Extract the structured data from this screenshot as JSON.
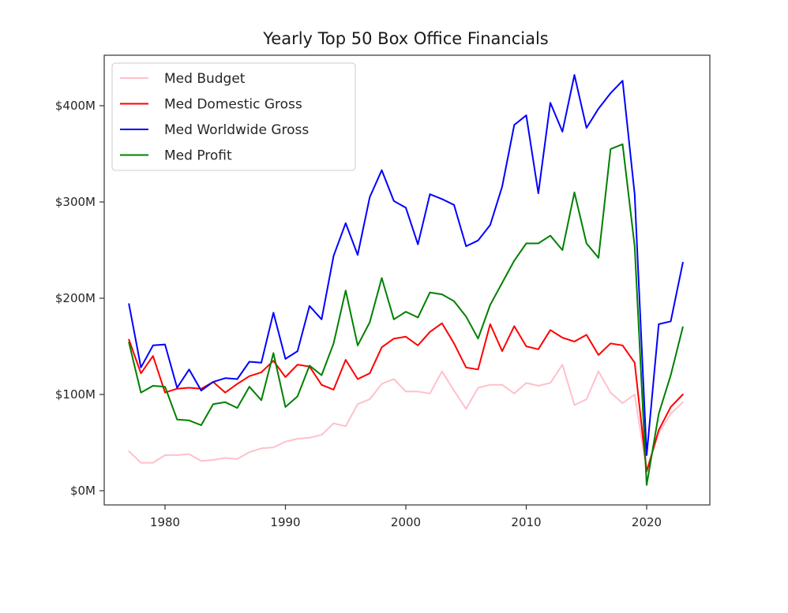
{
  "chart_data": {
    "type": "line",
    "title": "Yearly Top 50 Box Office Financials",
    "xlabel": "",
    "ylabel": "",
    "xlim": [
      1974.8,
      1925.2
    ],
    "ylim": [
      -15,
      445
    ],
    "x_ticks": [
      1980,
      1990,
      2000,
      2010,
      2020
    ],
    "y_ticks": [
      {
        "value": 0,
        "label": "$0M"
      },
      {
        "value": 100,
        "label": "$100M"
      },
      {
        "value": 200,
        "label": "$200M"
      },
      {
        "value": 300,
        "label": "$300M"
      },
      {
        "value": 400,
        "label": "$400M"
      }
    ],
    "grid": false,
    "legend_position": "top-left",
    "x": [
      1977,
      1978,
      1979,
      1980,
      1981,
      1982,
      1983,
      1984,
      1985,
      1986,
      1987,
      1988,
      1989,
      1990,
      1991,
      1992,
      1993,
      1994,
      1995,
      1996,
      1997,
      1998,
      1999,
      2000,
      2001,
      2002,
      2003,
      2004,
      2005,
      2006,
      2007,
      2008,
      2009,
      2010,
      2011,
      2012,
      2013,
      2014,
      2015,
      2016,
      2017,
      2018,
      2019,
      2020,
      2021,
      2022,
      2023
    ],
    "series": [
      {
        "name": "Med Budget",
        "color": "#ffc0cb",
        "values": [
          41,
          29,
          29,
          37,
          37,
          38,
          31,
          32,
          34,
          33,
          40,
          44,
          45,
          51,
          54,
          55,
          58,
          70,
          67,
          90,
          95,
          111,
          116,
          103,
          103,
          101,
          124,
          104,
          85,
          107,
          110,
          110,
          101,
          112,
          109,
          112,
          131,
          89,
          95,
          124,
          102,
          91,
          100,
          21,
          60,
          80,
          92
        ]
      },
      {
        "name": "Med Domestic Gross",
        "color": "#ff0000",
        "values": [
          157,
          122,
          140,
          102,
          106,
          107,
          106,
          113,
          102,
          111,
          119,
          123,
          135,
          118,
          131,
          129,
          110,
          105,
          136,
          116,
          122,
          149,
          158,
          160,
          151,
          165,
          174,
          153,
          128,
          126,
          173,
          145,
          171,
          150,
          147,
          167,
          159,
          155,
          162,
          141,
          153,
          151,
          133,
          20,
          63,
          87,
          100
        ]
      },
      {
        "name": "Med Worldwide Gross",
        "color": "#0000ff",
        "values": [
          194,
          128,
          151,
          152,
          107,
          126,
          104,
          113,
          117,
          116,
          134,
          133,
          185,
          137,
          145,
          192,
          178,
          244,
          278,
          245,
          305,
          333,
          301,
          294,
          256,
          308,
          303,
          297,
          254,
          260,
          276,
          316,
          380,
          390,
          309,
          403,
          373,
          432,
          377,
          397,
          413,
          426,
          308,
          37,
          173,
          176,
          237
        ]
      },
      {
        "name": "Med Profit",
        "color": "#008000",
        "values": [
          154,
          102,
          109,
          108,
          74,
          73,
          68,
          90,
          92,
          86,
          108,
          94,
          143,
          87,
          98,
          130,
          120,
          153,
          208,
          151,
          175,
          221,
          178,
          186,
          180,
          206,
          204,
          197,
          181,
          158,
          193,
          216,
          239,
          257,
          257,
          265,
          250,
          310,
          257,
          242,
          355,
          360,
          254,
          6,
          80,
          120,
          170
        ]
      }
    ]
  }
}
